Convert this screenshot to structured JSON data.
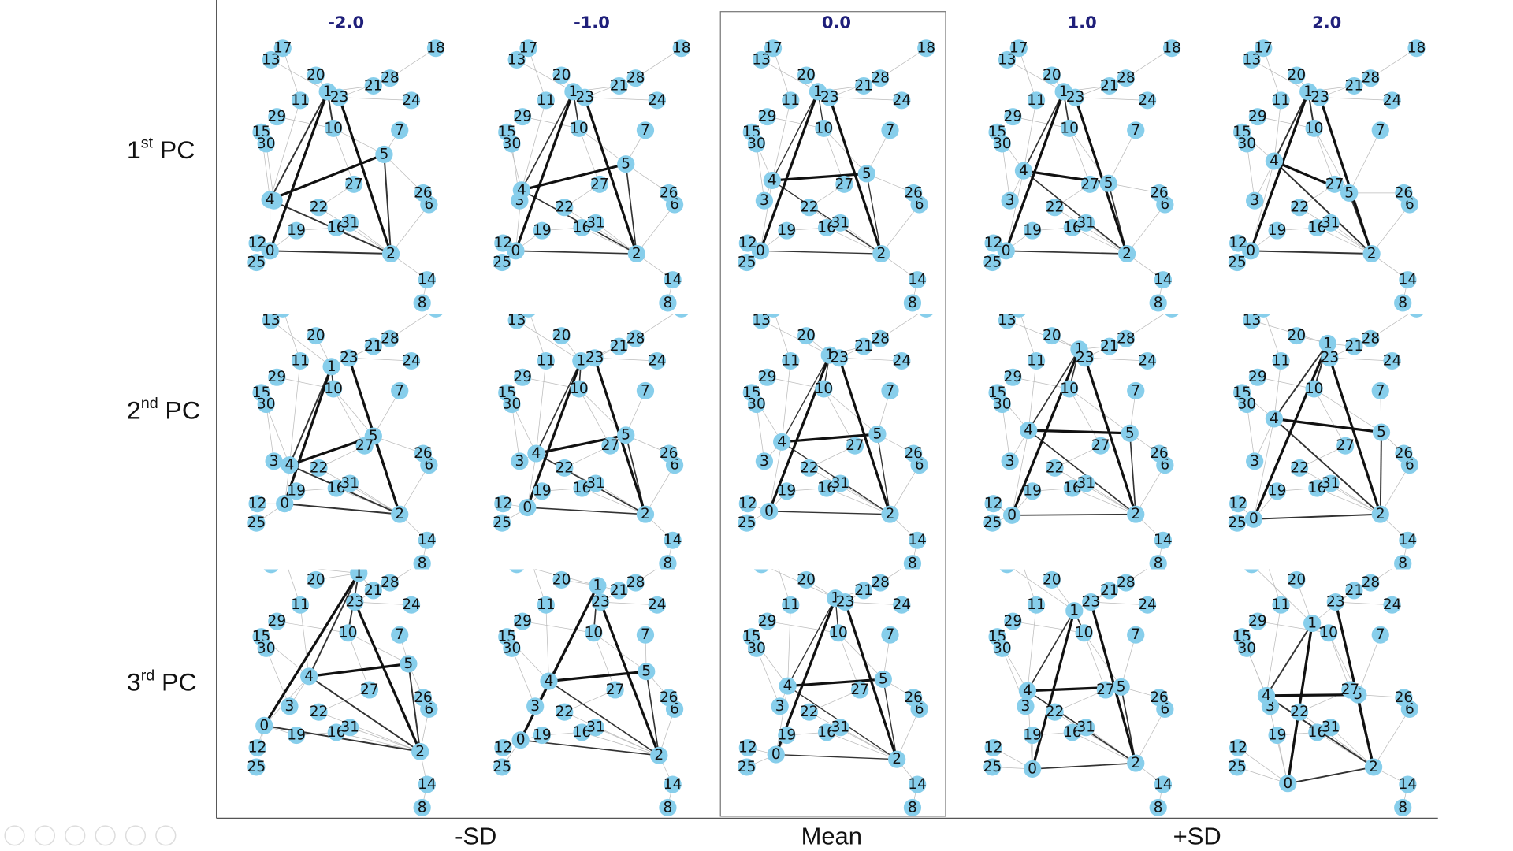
{
  "column_headers": [
    "-2.0",
    "-1.0",
    "0.0",
    "1.0",
    "2.0"
  ],
  "row_labels": [
    {
      "num": "1",
      "sup": "st",
      "word": "PC"
    },
    {
      "num": "2",
      "sup": "nd",
      "word": "PC"
    },
    {
      "num": "3",
      "sup": "rd",
      "word": "PC"
    }
  ],
  "bottom_labels": [
    "-SD",
    "Mean",
    "+SD"
  ],
  "node_labels": [
    "0",
    "1",
    "2",
    "3",
    "4",
    "5",
    "6",
    "7",
    "8",
    "10",
    "11",
    "12",
    "13",
    "14",
    "15",
    "16",
    "17",
    "18",
    "19",
    "20",
    "21",
    "22",
    "23",
    "24",
    "25",
    "26",
    "27",
    "28",
    "29",
    "30",
    "31"
  ]
}
